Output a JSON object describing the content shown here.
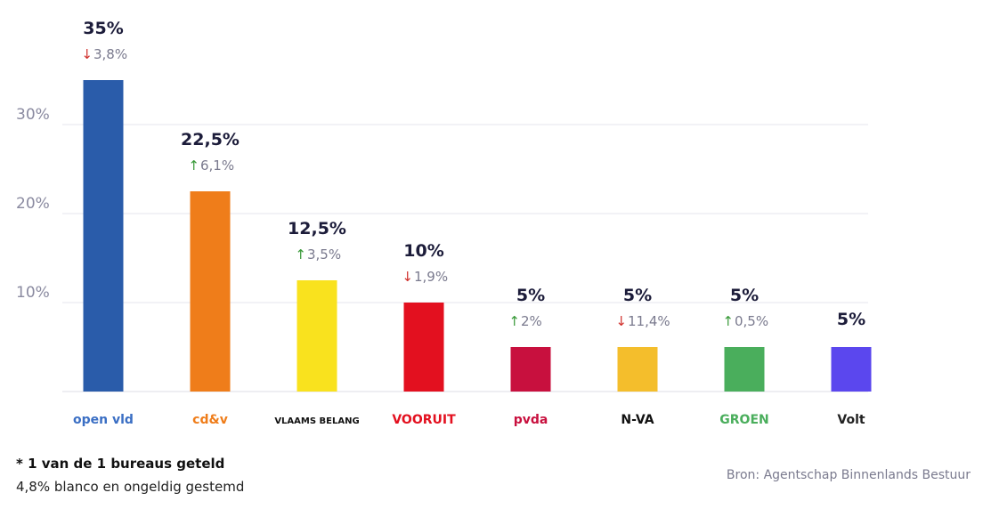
{
  "chart_data": {
    "type": "bar",
    "categories": [
      "open vld",
      "cd&v",
      "VLAAMS BELANG",
      "VOORUIT",
      "pvda",
      "N-VA",
      "GROEN",
      "Volt"
    ],
    "values": [
      35,
      22.5,
      12.5,
      10,
      5,
      5,
      5,
      5
    ],
    "value_labels": [
      "35%",
      "22,5%",
      "12,5%",
      "10%",
      "5%",
      "5%",
      "5%",
      "5%"
    ],
    "changes": [
      {
        "direction": "down",
        "label": "3,8%"
      },
      {
        "direction": "up",
        "label": "6,1%"
      },
      {
        "direction": "up",
        "label": "3,5%"
      },
      {
        "direction": "down",
        "label": "1,9%"
      },
      {
        "direction": "up",
        "label": "2%"
      },
      {
        "direction": "down",
        "label": "11,4%"
      },
      {
        "direction": "up",
        "label": "0,5%"
      },
      null
    ],
    "colors": [
      "#2a5caa",
      "#ef7d1a",
      "#f9e21e",
      "#e3101f",
      "#c8103e",
      "#f4be2c",
      "#4aae5c",
      "#5b47ee"
    ],
    "yticks": [
      10,
      20,
      30
    ],
    "ytick_labels": [
      "10%",
      "20%",
      "30%"
    ],
    "ylim": [
      0,
      35
    ],
    "grid": true,
    "title": "",
    "xlabel": "",
    "ylabel": ""
  },
  "party_labels": [
    "open vld",
    "cd&v",
    "VLAAMS BELANG",
    "VOORUIT",
    "pvda",
    "N-VA",
    "GROEN",
    "Volt"
  ],
  "label_colors": [
    "#3b6fc4",
    "#ef7d1a",
    "#111111",
    "#e3101f",
    "#c8103e",
    "#111111",
    "#4aae5c",
    "#222222"
  ],
  "footer": {
    "counted": "* 1 van de 1 bureaus geteld",
    "blanco": "4,8% blanco en ongeldig gestemd",
    "source": "Bron: Agentschap Binnenlands Bestuur"
  }
}
